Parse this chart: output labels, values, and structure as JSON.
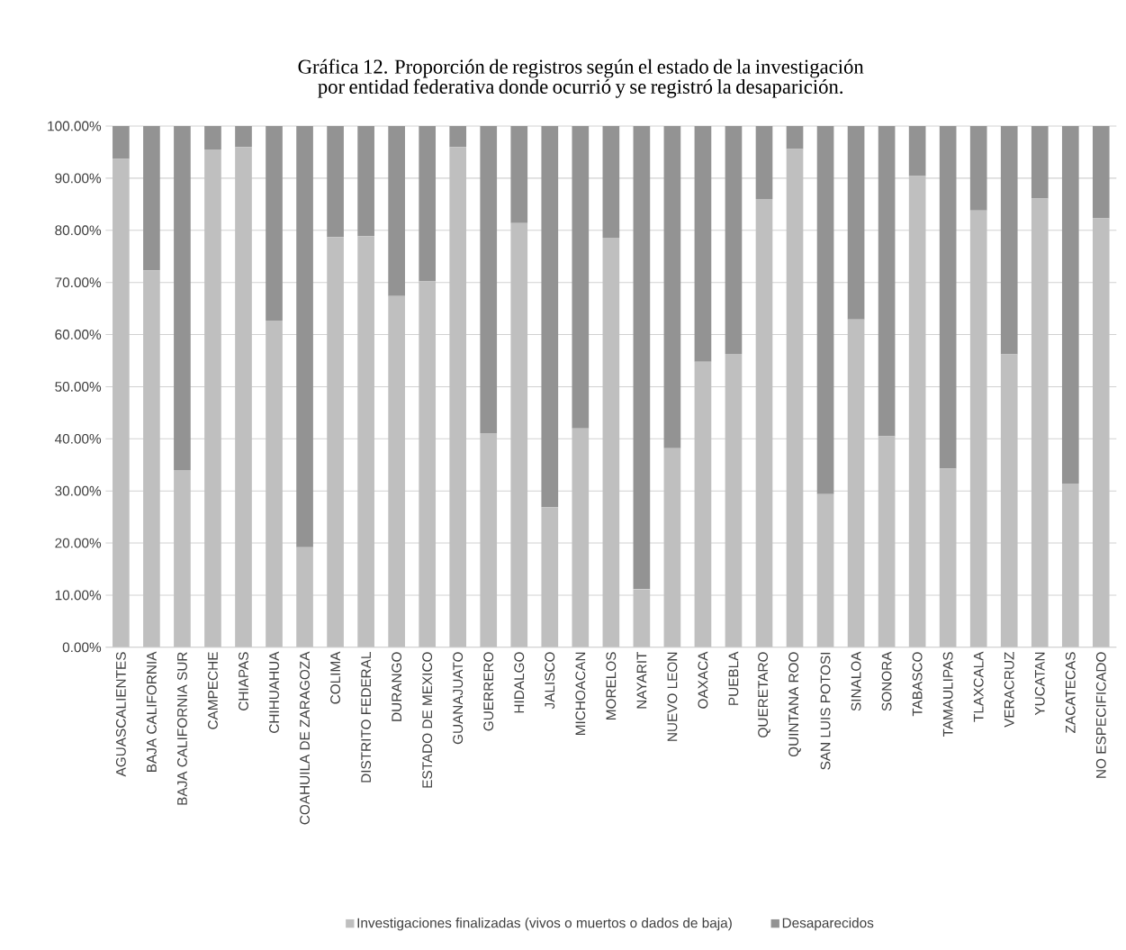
{
  "chart_data": {
    "type": "bar",
    "stacked": true,
    "title": "Gráfica 12. Proporción de registros según el estado de la investigación por entidad federativa donde ocurrió y se registró la desaparición.",
    "categories": [
      "AGUASCALIENTES",
      "BAJA CALIFORNIA",
      "BAJA CALIFORNIA SUR",
      "CAMPECHE",
      "CHIAPAS",
      "CHIHUAHUA",
      "COAHUILA DE ZARAGOZA",
      "COLIMA",
      "DISTRITO FEDERAL",
      "DURANGO",
      "ESTADO DE MEXICO",
      "GUANAJUATO",
      "GUERRERO",
      "HIDALGO",
      "JALISCO",
      "MICHOACAN",
      "MORELOS",
      "NAYARIT",
      "NUEVO LEON",
      "OAXACA",
      "PUEBLA",
      "QUERETARO",
      "QUINTANA ROO",
      "SAN LUIS POTOSI",
      "SINALOA",
      "SONORA",
      "TABASCO",
      "TAMAULIPAS",
      "TLAXCALA",
      "VERACRUZ",
      "YUCATAN",
      "ZACATECAS",
      "NO ESPECIFICADO"
    ],
    "series": [
      {
        "name": "Investigaciones finalizadas (vivos o muertos o dados de baja)",
        "color": "#bfbfbf",
        "values": [
          93.7,
          72.3,
          34.0,
          95.5,
          96.0,
          62.7,
          19.2,
          78.7,
          78.9,
          67.4,
          70.2,
          96.0,
          41.1,
          81.4,
          26.9,
          42.0,
          78.6,
          11.1,
          38.2,
          54.8,
          56.3,
          86.0,
          95.6,
          29.4,
          62.9,
          40.5,
          90.4,
          34.3,
          83.8,
          56.2,
          86.1,
          31.4,
          82.3
        ]
      },
      {
        "name": "Desaparecidos",
        "color": "#939393",
        "values": [
          6.3,
          27.7,
          66.0,
          4.5,
          4.0,
          37.3,
          80.8,
          21.3,
          21.1,
          32.6,
          29.8,
          4.0,
          58.9,
          18.6,
          73.1,
          58.0,
          21.4,
          88.9,
          61.8,
          45.2,
          43.7,
          14.0,
          4.4,
          70.6,
          37.1,
          59.5,
          9.6,
          65.7,
          16.2,
          43.8,
          13.9,
          68.6,
          17.7
        ]
      }
    ],
    "ylim": [
      0,
      100
    ],
    "yticks": [
      {
        "value": 0,
        "label": "0.00%"
      },
      {
        "value": 10,
        "label": "10.00%"
      },
      {
        "value": 20,
        "label": "20.00%"
      },
      {
        "value": 30,
        "label": "30.00%"
      },
      {
        "value": 40,
        "label": "40.00%"
      },
      {
        "value": 50,
        "label": "50.00%"
      },
      {
        "value": 60,
        "label": "60.00%"
      },
      {
        "value": 70,
        "label": "70.00%"
      },
      {
        "value": 80,
        "label": "80.00%"
      },
      {
        "value": 90,
        "label": "90.00%"
      },
      {
        "value": 100,
        "label": "100.00%"
      }
    ],
    "grid": "y",
    "legend": "bottom"
  }
}
